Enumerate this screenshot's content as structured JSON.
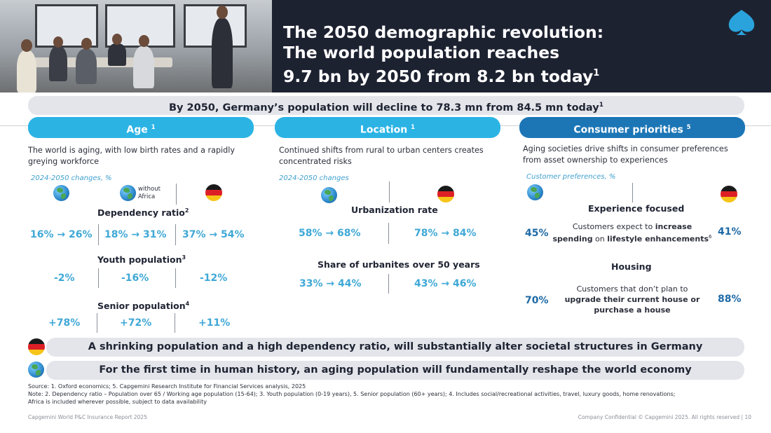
{
  "header": {
    "title_line1": "The 2050 demographic revolution:",
    "title_line2": "The world population reaches",
    "title_line3": "9.7 bn by 2050 from 8.2 bn today",
    "title_sup": "1",
    "logo_icon": "capgemini-spade-icon"
  },
  "banner_top": {
    "text": "By 2050, Germany’s population will decline to 78.3 mn from 84.5 mn today",
    "sup": "1"
  },
  "age": {
    "heading": "Age",
    "heading_sup": "1",
    "color": "#2bb3e4",
    "description": "The world is aging, with low birth rates and a rapidly greying workforce",
    "subheading": "2024-2050 changes, %",
    "without_africa": "without Africa",
    "dependency": {
      "title": "Dependency ratio",
      "sup": "2",
      "values": [
        "16% → 26%",
        "18% → 31%",
        "37% → 54%"
      ]
    },
    "youth": {
      "title": "Youth population",
      "sup": "3",
      "values": [
        "-2%",
        "-16%",
        "-12%"
      ]
    },
    "senior": {
      "title": "Senior population",
      "sup": "4",
      "values": [
        "+78%",
        "+72%",
        "+11%"
      ]
    }
  },
  "location": {
    "heading": "Location",
    "heading_sup": "1",
    "color": "#2bb3e4",
    "description": "Continued shifts from rural to urban centers creates concentrated risks",
    "subheading": "2024-2050 changes",
    "urbanization": {
      "title": "Urbanization rate",
      "values": [
        "58% → 68%",
        "78% → 84%"
      ]
    },
    "urbanites50": {
      "title": "Share of urbanites over 50 years",
      "values": [
        "33% → 44%",
        "43% → 46%"
      ]
    }
  },
  "consumer": {
    "heading": "Consumer priorities",
    "heading_sup": "5",
    "color": "#1c76b6",
    "description": "Aging societies drive shifts in consumer preferences from asset ownership to experiences",
    "subheading": "Customer preferences, %",
    "experience": {
      "title": "Experience focused",
      "note_a": "Customers expect to ",
      "note_b": "increase",
      "note_c": "spending",
      "note_d": " on ",
      "note_e": "lifestyle enhancements",
      "note_sup": "6",
      "world": "45%",
      "germany": "41%"
    },
    "housing": {
      "title": "Housing",
      "note_a": "Customers that don’t plan to",
      "note_b": "upgrade their current house or",
      "note_c": "purchase a house",
      "world": "70%",
      "germany": "88%"
    }
  },
  "banner_germany": {
    "text": "A shrinking population and a high dependency ratio, will substantially alter societal structures in Germany"
  },
  "banner_world": {
    "text": "For the first time in human history, an aging population will fundamentally reshape the world economy"
  },
  "footer": {
    "source_1": "Source: 1. Oxford economics; 5. Capgemini Research Institute for Financial Services analysis, 2025",
    "source_2": "Note: 2. Dependency ratio – Population over 65 / Working age population (15-64); 3. Youth population  (0-19 years), 5. Senior population (60+ years); 4. Includes social/recreational activities, travel, luxury goods, home renovations;",
    "source_3": " Africa is included wherever possible, subject to data availability",
    "left": "Capgemini World P&C Insurance Report 2025",
    "right": "Company Confidential © Capgemini 2025. All rights reserved |   10"
  }
}
